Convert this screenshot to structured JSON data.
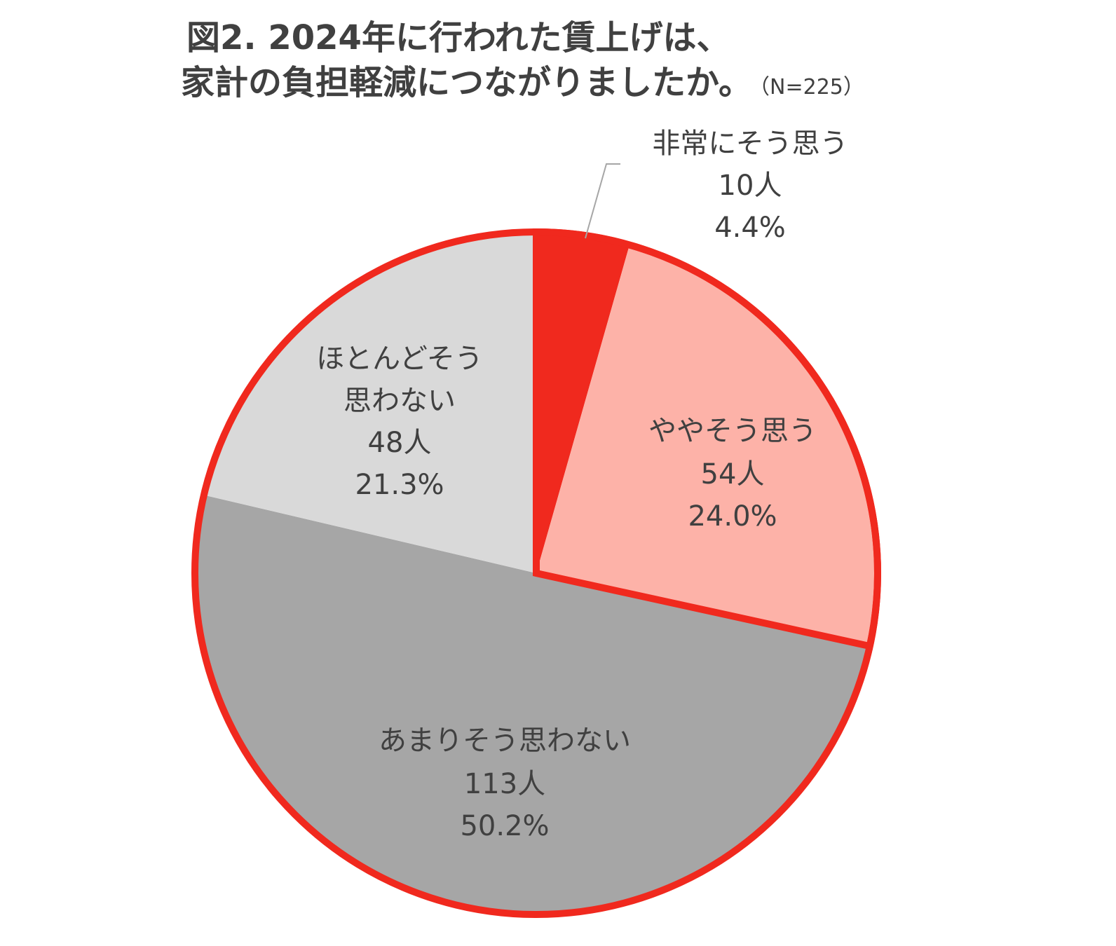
{
  "chart_data": {
    "type": "pie",
    "title_line1": "図2. 2024年に行われた賃上げは、",
    "title_line2": "家計の負担軽減につながりましたか。",
    "sample_note": "（N=225）",
    "slices": [
      {
        "label": "非常にそう思う",
        "count": "10人",
        "percent": "4.4%",
        "value": 4.4,
        "color": "#f0291e"
      },
      {
        "label": "ややそう思う",
        "count": "54人",
        "percent": "24.0%",
        "value": 24.0,
        "color": "#fdb2a8"
      },
      {
        "label": "あまりそう思わない",
        "count": "113人",
        "percent": "50.2%",
        "value": 50.2,
        "color": "#a6a6a6"
      },
      {
        "label_lines": [
          "ほとんどそう",
          "思わない"
        ],
        "count": "48人",
        "percent": "21.3%",
        "value": 21.3,
        "color": "#d9d9d9"
      }
    ],
    "outline_color": "#f0291e"
  }
}
